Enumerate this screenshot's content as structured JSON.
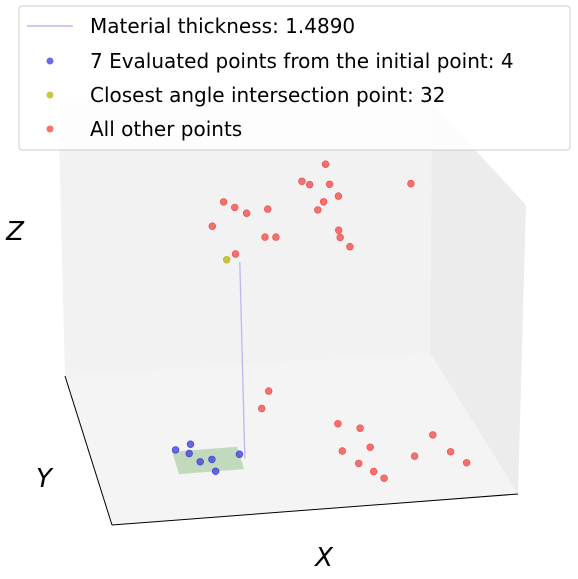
{
  "chart_data": {
    "type": "scatter",
    "projection": "3d",
    "title": "",
    "xlabel": "X",
    "ylabel": "Y",
    "zlabel": "Z",
    "grid": false,
    "legend_position": "top",
    "colors": {
      "thickness_line": "#b9b9f0",
      "evaluated": "#3b3bd6",
      "closest": "#b5b500",
      "other": "#f04545",
      "plane": "#b9d4b4"
    },
    "thickness": {
      "label": "Material thickness: 1.4890",
      "start": [
        0.37,
        0.37,
        0.0
      ],
      "end": [
        0.37,
        0.37,
        0.72
      ]
    },
    "plane_corners": [
      [
        0.2,
        0.3,
        0.0
      ],
      [
        0.36,
        0.3,
        0.0
      ],
      [
        0.36,
        0.45,
        0.0
      ],
      [
        0.2,
        0.45,
        0.0
      ]
    ],
    "series": [
      {
        "name": "7 Evaluated points from the initial point: 4",
        "key": "evaluated",
        "points": [
          [
            0.36,
            0.4,
            0.0
          ],
          [
            0.29,
            0.3,
            0.0
          ],
          [
            0.26,
            0.37,
            0.0
          ],
          [
            0.24,
            0.43,
            0.0
          ],
          [
            0.25,
            0.49,
            0.0
          ],
          [
            0.21,
            0.46,
            0.0
          ],
          [
            0.29,
            0.38,
            0.0
          ]
        ]
      },
      {
        "name": "Closest angle intersection point: 32",
        "key": "closest",
        "points": [
          [
            0.34,
            0.39,
            0.72
          ]
        ]
      },
      {
        "name": "All other points",
        "key": "other",
        "points": [
          [
            0.78,
            0.3,
            0.0
          ],
          [
            0.84,
            0.43,
            0.0
          ],
          [
            0.87,
            0.31,
            0.0
          ],
          [
            0.9,
            0.23,
            0.0
          ],
          [
            0.62,
            0.55,
            0.0
          ],
          [
            0.67,
            0.51,
            0.0
          ],
          [
            0.61,
            0.37,
            0.0
          ],
          [
            0.68,
            0.38,
            0.0
          ],
          [
            0.64,
            0.28,
            0.0
          ],
          [
            0.67,
            0.22,
            0.0
          ],
          [
            0.69,
            0.17,
            0.0
          ],
          [
            0.45,
            0.53,
            0.15
          ],
          [
            0.42,
            0.42,
            0.15
          ],
          [
            0.35,
            0.52,
            0.86
          ],
          [
            0.38,
            0.55,
            0.82
          ],
          [
            0.41,
            0.56,
            0.79
          ],
          [
            0.31,
            0.42,
            0.83
          ],
          [
            0.36,
            0.37,
            0.75
          ],
          [
            0.44,
            0.43,
            0.77
          ],
          [
            0.46,
            0.54,
            0.81
          ],
          [
            0.47,
            0.46,
            0.75
          ],
          [
            0.55,
            0.58,
            0.88
          ],
          [
            0.57,
            0.59,
            0.86
          ],
          [
            0.62,
            0.68,
            0.88
          ],
          [
            0.62,
            0.6,
            0.85
          ],
          [
            0.64,
            0.59,
            0.81
          ],
          [
            0.58,
            0.51,
            0.81
          ],
          [
            0.6,
            0.56,
            0.81
          ],
          [
            0.63,
            0.51,
            0.73
          ],
          [
            0.63,
            0.48,
            0.72
          ],
          [
            0.65,
            0.45,
            0.7
          ],
          [
            0.82,
            0.6,
            0.83
          ]
        ]
      }
    ]
  }
}
